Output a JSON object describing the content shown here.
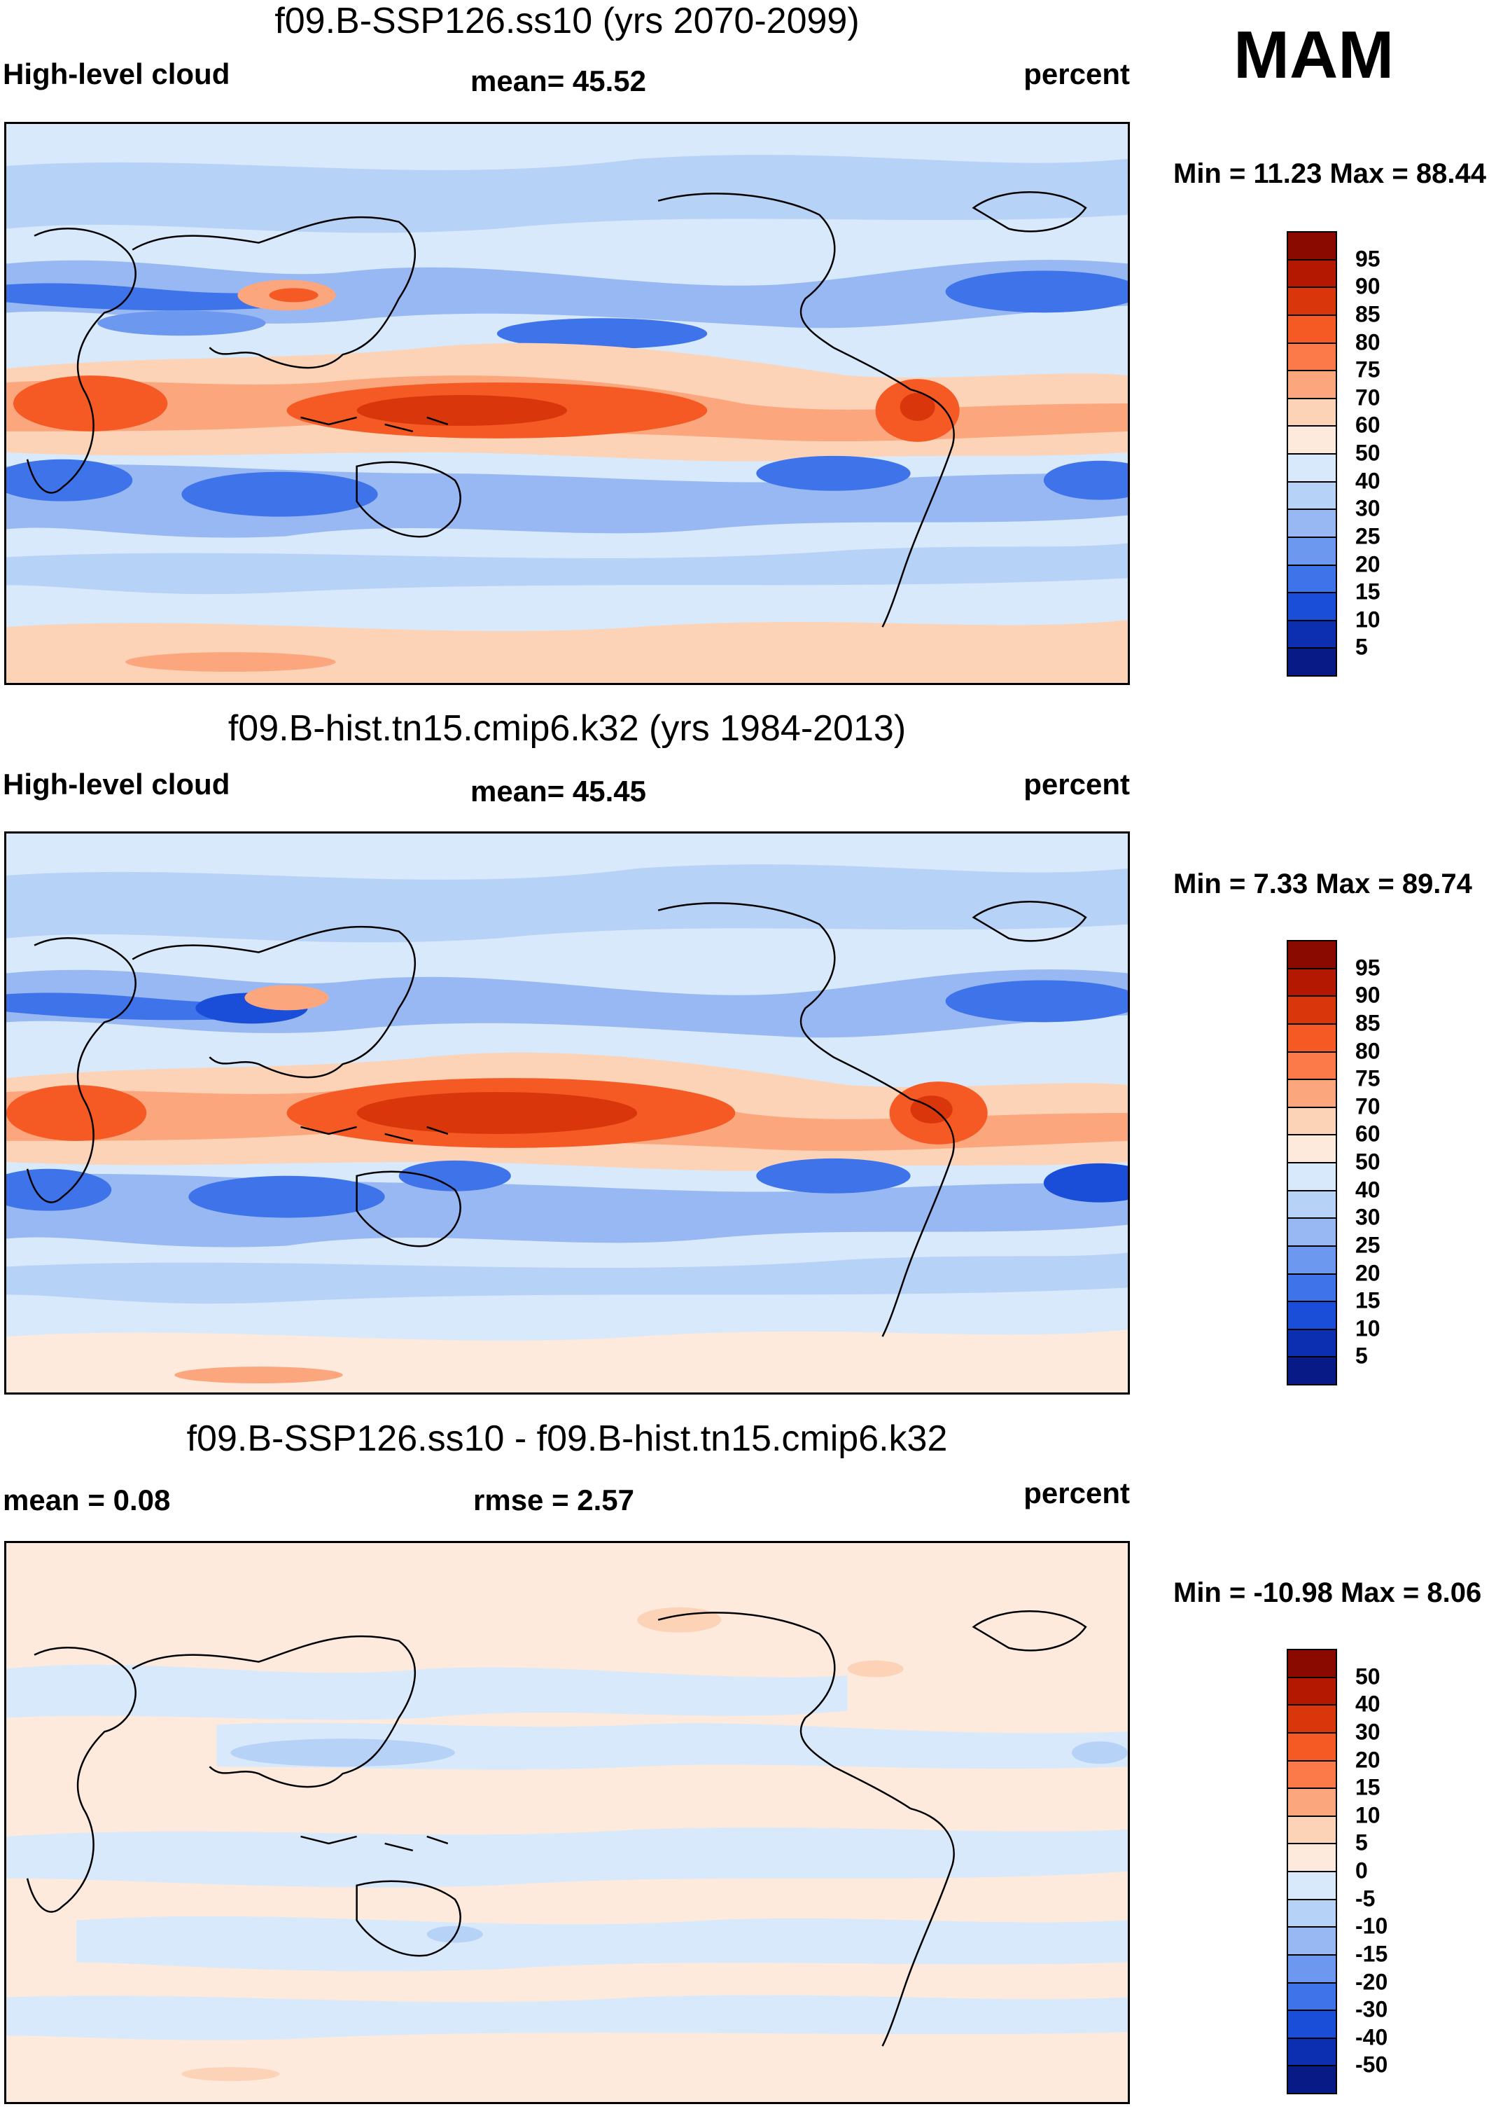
{
  "season": "MAM",
  "panels": [
    {
      "title": "f09.B-SSP126.ss10 (yrs 2070-2099)",
      "left_label": "High-level cloud",
      "center_label": "mean=  45.52",
      "right_label": "percent",
      "minmax": "Min =  11.23 Max =  88.44"
    },
    {
      "title": "f09.B-hist.tn15.cmip6.k32 (yrs 1984-2013)",
      "left_label": "High-level cloud",
      "center_label": "mean=  45.45",
      "right_label": "percent",
      "minmax": "Min =   7.33 Max =  89.74"
    },
    {
      "title": "f09.B-SSP126.ss10 - f09.B-hist.tn15.cmip6.k32",
      "left_label": "mean =   0.08",
      "center_label": "rmse =   2.57",
      "right_label": "percent",
      "minmax": "Min = -10.98 Max =   8.06"
    }
  ],
  "colorbars": {
    "absolute": {
      "labels": [
        "95",
        "90",
        "85",
        "80",
        "75",
        "70",
        "60",
        "50",
        "40",
        "30",
        "25",
        "20",
        "15",
        "10",
        "5"
      ],
      "colors": [
        "#8b0a00",
        "#b51800",
        "#d9360b",
        "#f55924",
        "#fc7a4a",
        "#fca67e",
        "#fdd3b8",
        "#fdeadd",
        "#d7e9fa",
        "#b7d2f7",
        "#98b8f4",
        "#6d98f0",
        "#3f73e9",
        "#1a4ed9",
        "#0c2fb2",
        "#081a86"
      ]
    },
    "difference": {
      "labels": [
        "50",
        "40",
        "30",
        "20",
        "15",
        "10",
        "5",
        "0",
        "-5",
        "-10",
        "-15",
        "-20",
        "-30",
        "-40",
        "-50"
      ],
      "colors": [
        "#8b0a00",
        "#b51800",
        "#d9360b",
        "#f55924",
        "#fc7a4a",
        "#fca67e",
        "#fdd3b8",
        "#fdeadd",
        "#d7e9fa",
        "#b7d2f7",
        "#98b8f4",
        "#6d98f0",
        "#3f73e9",
        "#1a4ed9",
        "#0c2fb2",
        "#081a86"
      ]
    }
  }
}
